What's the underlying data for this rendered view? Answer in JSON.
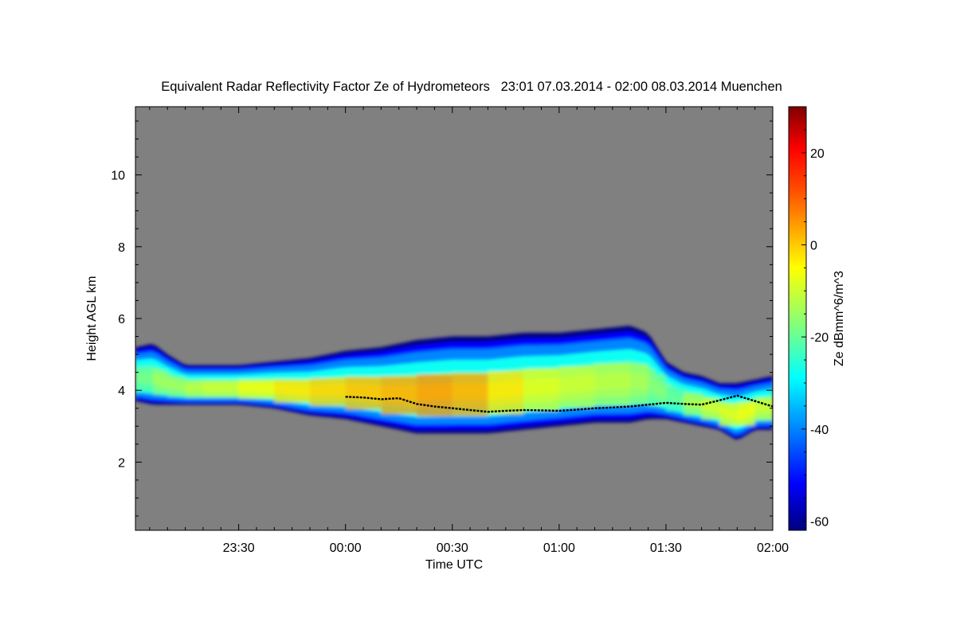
{
  "chart_data": {
    "type": "heatmap",
    "title": "Equivalent Radar Reflectivity Factor Ze of Hydrometeors   23:01 07.03.2014 - 02:00 08.03.2014 Muenchen",
    "xlabel": "Time UTC",
    "ylabel": "Height AGL km",
    "colorbar_label": "Ze dBmm^6/m^3",
    "x_range_minutes": [
      -59,
      120
    ],
    "y_range_km": [
      0.1,
      11.9
    ],
    "x_ticks": [
      {
        "value": -30,
        "label": "23:30"
      },
      {
        "value": 0,
        "label": "00:00"
      },
      {
        "value": 30,
        "label": "00:30"
      },
      {
        "value": 60,
        "label": "01:00"
      },
      {
        "value": 90,
        "label": "01:30"
      },
      {
        "value": 120,
        "label": "02:00"
      }
    ],
    "y_ticks": [
      {
        "value": 2,
        "label": "2"
      },
      {
        "value": 4,
        "label": "4"
      },
      {
        "value": 6,
        "label": "6"
      },
      {
        "value": 8,
        "label": "8"
      },
      {
        "value": 10,
        "label": "10"
      }
    ],
    "colorbar_range": [
      -62,
      30
    ],
    "colorbar_ticks": [
      {
        "value": 20,
        "label": "20"
      },
      {
        "value": 0,
        "label": "0"
      },
      {
        "value": -20,
        "label": "-20"
      },
      {
        "value": -40,
        "label": "-40"
      },
      {
        "value": -60,
        "label": "-60"
      }
    ],
    "echo_layer": {
      "time_min": [
        -59,
        -54,
        -50,
        -45,
        -40,
        -30,
        -20,
        -10,
        0,
        10,
        20,
        30,
        40,
        50,
        60,
        70,
        80,
        85,
        90,
        95,
        100,
        105,
        110,
        115,
        120
      ],
      "top_km": [
        5.2,
        5.3,
        5.0,
        4.7,
        4.7,
        4.7,
        4.8,
        4.9,
        5.1,
        5.2,
        5.4,
        5.5,
        5.5,
        5.6,
        5.6,
        5.7,
        5.8,
        5.6,
        4.8,
        4.5,
        4.4,
        4.2,
        4.2,
        4.3,
        4.4
      ],
      "base_km": [
        3.7,
        3.6,
        3.6,
        3.6,
        3.6,
        3.6,
        3.5,
        3.3,
        3.2,
        3.0,
        2.8,
        2.8,
        2.8,
        2.9,
        3.0,
        3.1,
        3.1,
        3.2,
        3.2,
        3.1,
        3.0,
        2.9,
        2.6,
        2.9,
        2.9
      ],
      "core_dbz": [
        -20,
        -15,
        -15,
        -12,
        -10,
        -6,
        -2,
        0,
        2,
        4,
        6,
        4,
        -2,
        -8,
        -10,
        -12,
        -14,
        -18,
        -22,
        -14,
        -10,
        -8,
        -6,
        -10,
        -12
      ]
    },
    "melting_layer_line": {
      "time_min": [
        0,
        5,
        10,
        15,
        20,
        25,
        30,
        35,
        40,
        45,
        50,
        55,
        60,
        65,
        70,
        75,
        80,
        85,
        90,
        95,
        100,
        105,
        110,
        115,
        120
      ],
      "height_km": [
        3.82,
        3.8,
        3.75,
        3.78,
        3.62,
        3.55,
        3.5,
        3.45,
        3.4,
        3.43,
        3.45,
        3.44,
        3.43,
        3.46,
        3.5,
        3.52,
        3.55,
        3.6,
        3.65,
        3.62,
        3.6,
        3.72,
        3.85,
        3.7,
        3.55
      ]
    },
    "background_color": "#808080",
    "colormap": [
      "#00007f",
      "#0000ff",
      "#007fff",
      "#00ffff",
      "#7fff7f",
      "#ffff00",
      "#ff7f00",
      "#ff0000",
      "#7f0000"
    ]
  }
}
